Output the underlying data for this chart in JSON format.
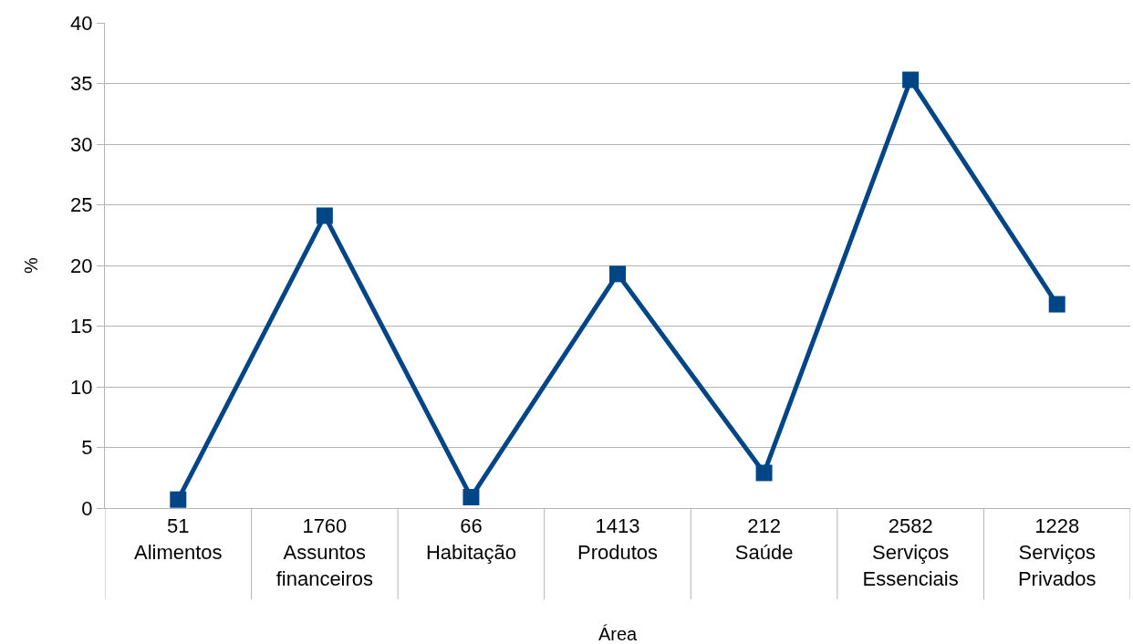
{
  "chart_data": {
    "type": "line",
    "xlabel": "Área",
    "ylabel": "%",
    "categories": [
      "51\nAlimentos",
      "1760\nAssuntos\nfinanceiros",
      "66\nHabitação",
      "1413\nProdutos",
      "212\nSaúde",
      "2582\nServiços\nEssenciais",
      "1228\nServiços\nPrivados"
    ],
    "series": [
      {
        "color": "#004586",
        "values": [
          0.7,
          24.1,
          0.9,
          19.3,
          2.9,
          35.3,
          16.8
        ]
      }
    ],
    "ylim": [
      0,
      40
    ],
    "yticks": [
      0,
      5,
      10,
      15,
      20,
      25,
      30,
      35,
      40
    ],
    "grid": "y",
    "legend": false,
    "marker": "square",
    "line_style": "solid"
  }
}
